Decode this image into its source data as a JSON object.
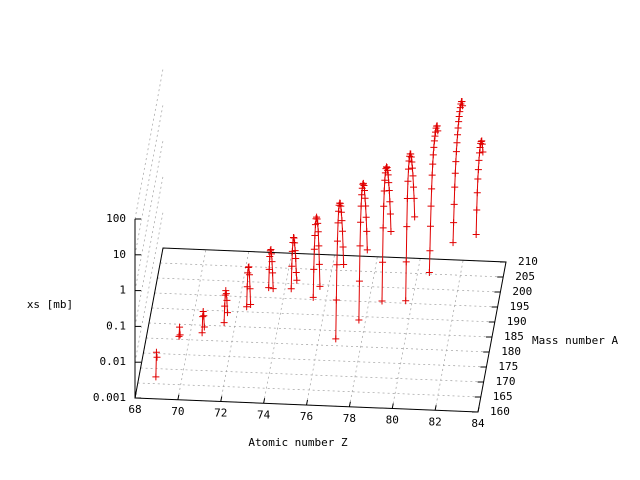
{
  "chart_data": {
    "type": "lines3d",
    "xlabel": "Atomic number Z",
    "ylabel": "Mass number A",
    "zlabel": "xs [mb]",
    "xlim": [
      68,
      84
    ],
    "xticks": [
      68,
      70,
      72,
      74,
      76,
      78,
      80,
      82,
      84
    ],
    "ylim": [
      160,
      210
    ],
    "yticks": [
      160,
      165,
      170,
      175,
      180,
      185,
      190,
      195,
      200,
      205,
      210
    ],
    "zlim": [
      0.001,
      100
    ],
    "zticks": [
      0.001,
      0.01,
      0.1,
      1,
      10,
      100
    ],
    "zlog": true,
    "grid": true,
    "color": "#e00000",
    "series": [
      {
        "x": 69,
        "y": [
          159,
          160,
          161
        ],
        "values": [
          0.005,
          0.02,
          0.012
        ]
      },
      {
        "x": 70,
        "y": [
          162,
          163,
          164
        ],
        "values": [
          0.04,
          0.06,
          0.03
        ]
      },
      {
        "x": 71,
        "y": [
          165,
          166,
          167,
          168,
          169
        ],
        "values": [
          0.03,
          0.07,
          0.08,
          0.05,
          0.02
        ]
      },
      {
        "x": 72,
        "y": [
          166,
          167,
          168,
          169,
          170,
          171,
          172
        ],
        "values": [
          0.05,
          0.12,
          0.2,
          0.22,
          0.15,
          0.08,
          0.03
        ]
      },
      {
        "x": 73,
        "y": [
          168,
          169,
          170,
          171,
          172,
          173,
          174,
          175
        ],
        "values": [
          0.1,
          0.3,
          0.6,
          0.7,
          0.6,
          0.3,
          0.1,
          0.03
        ]
      },
      {
        "x": 74,
        "y": [
          169,
          170,
          171,
          172,
          173,
          174,
          175,
          176,
          177
        ],
        "values": [
          0.3,
          0.8,
          1.5,
          1.8,
          1.6,
          1.0,
          0.5,
          0.2,
          0.06
        ]
      },
      {
        "x": 75,
        "y": [
          171,
          172,
          173,
          174,
          175,
          176,
          177,
          178,
          179,
          180,
          181
        ],
        "values": [
          0.2,
          0.7,
          1.5,
          2.2,
          2.5,
          2,
          1.2,
          0.6,
          0.3,
          0.1,
          0.05
        ]
      },
      {
        "x": 76,
        "y": [
          172,
          173,
          174,
          175,
          176,
          177,
          178,
          179,
          180,
          181,
          182,
          183,
          184
        ],
        "values": [
          0.1,
          0.5,
          1.5,
          3,
          5,
          6,
          5.5,
          4,
          2.5,
          1.2,
          0.4,
          0.1,
          0.02
        ]
      },
      {
        "x": 77,
        "y": [
          174,
          175,
          176,
          177,
          178,
          179,
          180,
          181,
          182,
          183,
          184,
          185,
          186,
          187,
          188
        ],
        "values": [
          0.005,
          0.05,
          0.4,
          1.5,
          4,
          7,
          8.5,
          8,
          6.5,
          4.5,
          2.5,
          1.2,
          0.5,
          0.15,
          0.04
        ]
      },
      {
        "x": 78,
        "y": [
          177,
          178,
          179,
          180,
          181,
          182,
          183,
          184,
          185,
          186,
          187,
          188,
          189,
          190,
          191,
          192
        ],
        "values": [
          0.01,
          0.1,
          0.8,
          3,
          7,
          12,
          15,
          16,
          14,
          10,
          6,
          3,
          1.5,
          0.6,
          0.2,
          0.05
        ]
      },
      {
        "x": 79,
        "y": [
          180,
          181,
          182,
          183,
          184,
          185,
          186,
          187,
          188,
          189,
          190,
          191,
          192,
          193,
          194,
          195,
          196
        ],
        "values": [
          0.02,
          0.2,
          1.5,
          5,
          11,
          18,
          24,
          26,
          24,
          19,
          13,
          8,
          4,
          2,
          0.8,
          0.3,
          0.08
        ]
      },
      {
        "x": 80,
        "y": [
          184,
          185,
          186,
          187,
          188,
          189,
          190,
          191,
          192,
          193,
          194,
          195,
          196,
          197,
          198,
          199,
          200
        ],
        "values": [
          0.01,
          0.1,
          0.8,
          4,
          10,
          18,
          25,
          28,
          27,
          22,
          15,
          9,
          5,
          2.5,
          1,
          0.4,
          0.1
        ]
      },
      {
        "x": 81,
        "y": [
          188,
          189,
          190,
          191,
          192,
          193,
          194,
          195,
          196,
          197,
          198,
          199,
          200,
          201,
          202,
          203
        ],
        "values": [
          0.03,
          0.1,
          0.4,
          1.2,
          3,
          6,
          10,
          15,
          20,
          25,
          28,
          30,
          32,
          30,
          25,
          15
        ]
      },
      {
        "x": 82,
        "y": [
          192,
          193,
          194,
          195,
          196,
          197,
          198,
          199,
          200,
          201,
          202,
          203,
          204,
          205,
          206,
          207,
          208,
          209
        ],
        "values": [
          0.1,
          0.3,
          0.8,
          2,
          4,
          7,
          11,
          16,
          22,
          28,
          35,
          40,
          45,
          48,
          50,
          48,
          40,
          25
        ]
      },
      {
        "x": 83,
        "y": [
          195,
          196,
          197,
          198,
          199,
          200,
          201,
          202,
          203,
          204,
          205,
          206,
          207
        ],
        "values": [
          0.1,
          0.4,
          1,
          2,
          3,
          4.5,
          6,
          7,
          7.5,
          7,
          6,
          4,
          2
        ]
      }
    ]
  }
}
